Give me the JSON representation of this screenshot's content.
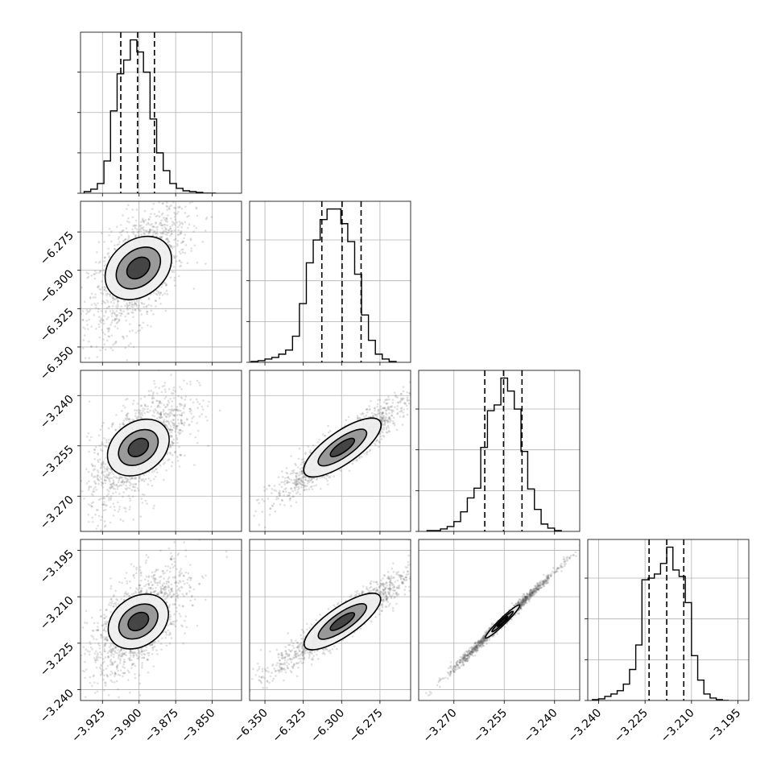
{
  "chart_data": {
    "type": "corner",
    "n_params": 4,
    "colors": {
      "line": "#000000",
      "grid": "#b0b0b0",
      "scatter": "#555555",
      "fill_dark": "#000000",
      "fill_mid": "#555555",
      "fill_light": "#efefef"
    },
    "grid": true,
    "parameters": [
      {
        "index": 0,
        "range": [
          -3.94,
          -3.83
        ],
        "ticks": [
          "−3.925",
          "−3.900",
          "−3.875",
          "−3.850"
        ],
        "tick_values": [
          -3.925,
          -3.9,
          -3.875,
          -3.85
        ]
      },
      {
        "index": 1,
        "range": [
          -6.36,
          -6.255
        ],
        "ticks": [
          "−6.350",
          "−6.325",
          "−6.300",
          "−6.275"
        ],
        "tick_values": [
          -6.35,
          -6.325,
          -6.3,
          -6.275
        ]
      },
      {
        "index": 2,
        "range": [
          -3.2805,
          -3.2325
        ],
        "ticks": [
          "−3.270",
          "−3.255",
          "−3.240"
        ],
        "tick_values": [
          -3.27,
          -3.255,
          -3.24
        ]
      },
      {
        "index": 3,
        "range": [
          -3.2435,
          -3.1915
        ],
        "ticks": [
          "−3.240",
          "−3.225",
          "−3.210",
          "−3.195"
        ],
        "tick_values": [
          -3.24,
          -3.225,
          -3.21,
          -3.195
        ]
      }
    ],
    "histograms": [
      {
        "param": 0,
        "quantiles": [
          -3.9125,
          -3.901,
          -3.8895
        ],
        "bin_edges": [
          -3.9375,
          -3.933,
          -3.9285,
          -3.924,
          -3.9195,
          -3.915,
          -3.9105,
          -3.906,
          -3.9015,
          -3.897,
          -3.8925,
          -3.888,
          -3.8835,
          -3.879,
          -3.8745,
          -3.87,
          -3.8655,
          -3.861,
          -3.8565,
          -3.852,
          -3.8475
        ],
        "counts": [
          2,
          5,
          12,
          40,
          102,
          148,
          165,
          190,
          175,
          150,
          92,
          50,
          28,
          12,
          6,
          3,
          2,
          1,
          0,
          0
        ]
      },
      {
        "param": 1,
        "quantiles": [
          -6.3129,
          -6.2997,
          -6.2873
        ],
        "bin_edges": [
          -6.359,
          -6.3545,
          -6.35,
          -6.3455,
          -6.341,
          -6.3365,
          -6.332,
          -6.3275,
          -6.323,
          -6.3185,
          -6.314,
          -6.3095,
          -6.305,
          -6.3005,
          -6.296,
          -6.2915,
          -6.287,
          -6.2825,
          -6.278,
          -6.2735,
          -6.269,
          -6.2645
        ],
        "counts": [
          1,
          2,
          4,
          6,
          10,
          15,
          32,
          72,
          122,
          150,
          175,
          188,
          188,
          170,
          148,
          108,
          58,
          27,
          10,
          4,
          1
        ]
      },
      {
        "param": 2,
        "quantiles": [
          -3.2608,
          -3.2552,
          -3.2497
        ],
        "bin_edges": [
          -3.278,
          -3.276,
          -3.274,
          -3.272,
          -3.27,
          -3.268,
          -3.266,
          -3.264,
          -3.262,
          -3.26,
          -3.258,
          -3.256,
          -3.254,
          -3.252,
          -3.25,
          -3.248,
          -3.246,
          -3.244,
          -3.242,
          -3.24,
          -3.238
        ],
        "counts": [
          1,
          1,
          3,
          6,
          12,
          24,
          41,
          53,
          103,
          148,
          155,
          188,
          172,
          150,
          98,
          52,
          27,
          9,
          4,
          1
        ]
      },
      {
        "param": 3,
        "quantiles": [
          -3.2237,
          -3.218,
          -3.2125
        ],
        "bin_edges": [
          -3.242,
          -3.24,
          -3.238,
          -3.236,
          -3.234,
          -3.232,
          -3.23,
          -3.228,
          -3.226,
          -3.224,
          -3.222,
          -3.22,
          -3.218,
          -3.216,
          -3.214,
          -3.212,
          -3.21,
          -3.208,
          -3.206,
          -3.204,
          -3.202,
          -3.2,
          -3.198
        ],
        "counts": [
          1,
          2,
          5,
          8,
          12,
          20,
          38,
          68,
          148,
          150,
          155,
          168,
          188,
          160,
          152,
          120,
          55,
          25,
          8,
          3,
          1,
          0
        ]
      }
    ],
    "pairs": [
      {
        "x_param": 0,
        "y_param": 1,
        "center": [
          -3.9005,
          -6.2985
        ],
        "corr": 0.62,
        "levels": [
          {
            "rx": 0.0285,
            "ry": 0.0395,
            "fill": "fill_light"
          },
          {
            "rx": 0.0195,
            "ry": 0.0265,
            "fill": "fill_mid"
          },
          {
            "rx": 0.0105,
            "ry": 0.0135,
            "fill": "fill_dark"
          }
        ],
        "scatter": {
          "n": 1400,
          "sx": 0.0135,
          "sy": 0.0175
        }
      },
      {
        "x_param": 0,
        "y_param": 2,
        "center": [
          -3.9005,
          -3.2555
        ],
        "corr": 0.62,
        "levels": [
          {
            "rx": 0.029,
            "ry": 0.0155,
            "fill": "fill_light"
          },
          {
            "rx": 0.019,
            "ry": 0.01,
            "fill": "fill_mid"
          },
          {
            "rx": 0.01,
            "ry": 0.005,
            "fill": "fill_dark"
          }
        ],
        "scatter": {
          "n": 1400,
          "sx": 0.0135,
          "sy": 0.007
        }
      },
      {
        "x_param": 1,
        "y_param": 2,
        "center": [
          -6.2995,
          -3.2555
        ],
        "corr": 0.93,
        "levels": [
          {
            "rx": 0.05,
            "ry": 0.015,
            "fill": "fill_light"
          },
          {
            "rx": 0.032,
            "ry": 0.009,
            "fill": "fill_mid"
          },
          {
            "rx": 0.016,
            "ry": 0.0045,
            "fill": "fill_dark"
          }
        ],
        "scatter": {
          "n": 1400,
          "sx": 0.018,
          "sy": 0.0062
        }
      },
      {
        "x_param": 0,
        "y_param": 3,
        "center": [
          -3.9005,
          -3.218
        ],
        "corr": 0.62,
        "levels": [
          {
            "rx": 0.029,
            "ry": 0.016,
            "fill": "fill_light"
          },
          {
            "rx": 0.019,
            "ry": 0.0105,
            "fill": "fill_mid"
          },
          {
            "rx": 0.01,
            "ry": 0.0055,
            "fill": "fill_dark"
          }
        ],
        "scatter": {
          "n": 1400,
          "sx": 0.0135,
          "sy": 0.0073
        }
      },
      {
        "x_param": 1,
        "y_param": 3,
        "center": [
          -6.2995,
          -3.218
        ],
        "corr": 0.94,
        "levels": [
          {
            "rx": 0.05,
            "ry": 0.0155,
            "fill": "fill_light"
          },
          {
            "rx": 0.032,
            "ry": 0.0095,
            "fill": "fill_mid"
          },
          {
            "rx": 0.016,
            "ry": 0.0048,
            "fill": "fill_dark"
          }
        ],
        "scatter": {
          "n": 1400,
          "sx": 0.018,
          "sy": 0.0065
        }
      },
      {
        "x_param": 2,
        "y_param": 3,
        "center": [
          -3.2555,
          -3.218
        ],
        "corr": 0.995,
        "levels": [
          {
            "rx": 0.0105,
            "ry": 0.0102,
            "fill": "fill_light"
          },
          {
            "rx": 0.0065,
            "ry": 0.0063,
            "fill": "fill_mid"
          },
          {
            "rx": 0.0032,
            "ry": 0.0031,
            "fill": "fill_dark"
          }
        ],
        "scatter": {
          "n": 1400,
          "sx": 0.0062,
          "sy": 0.0065
        }
      }
    ]
  }
}
